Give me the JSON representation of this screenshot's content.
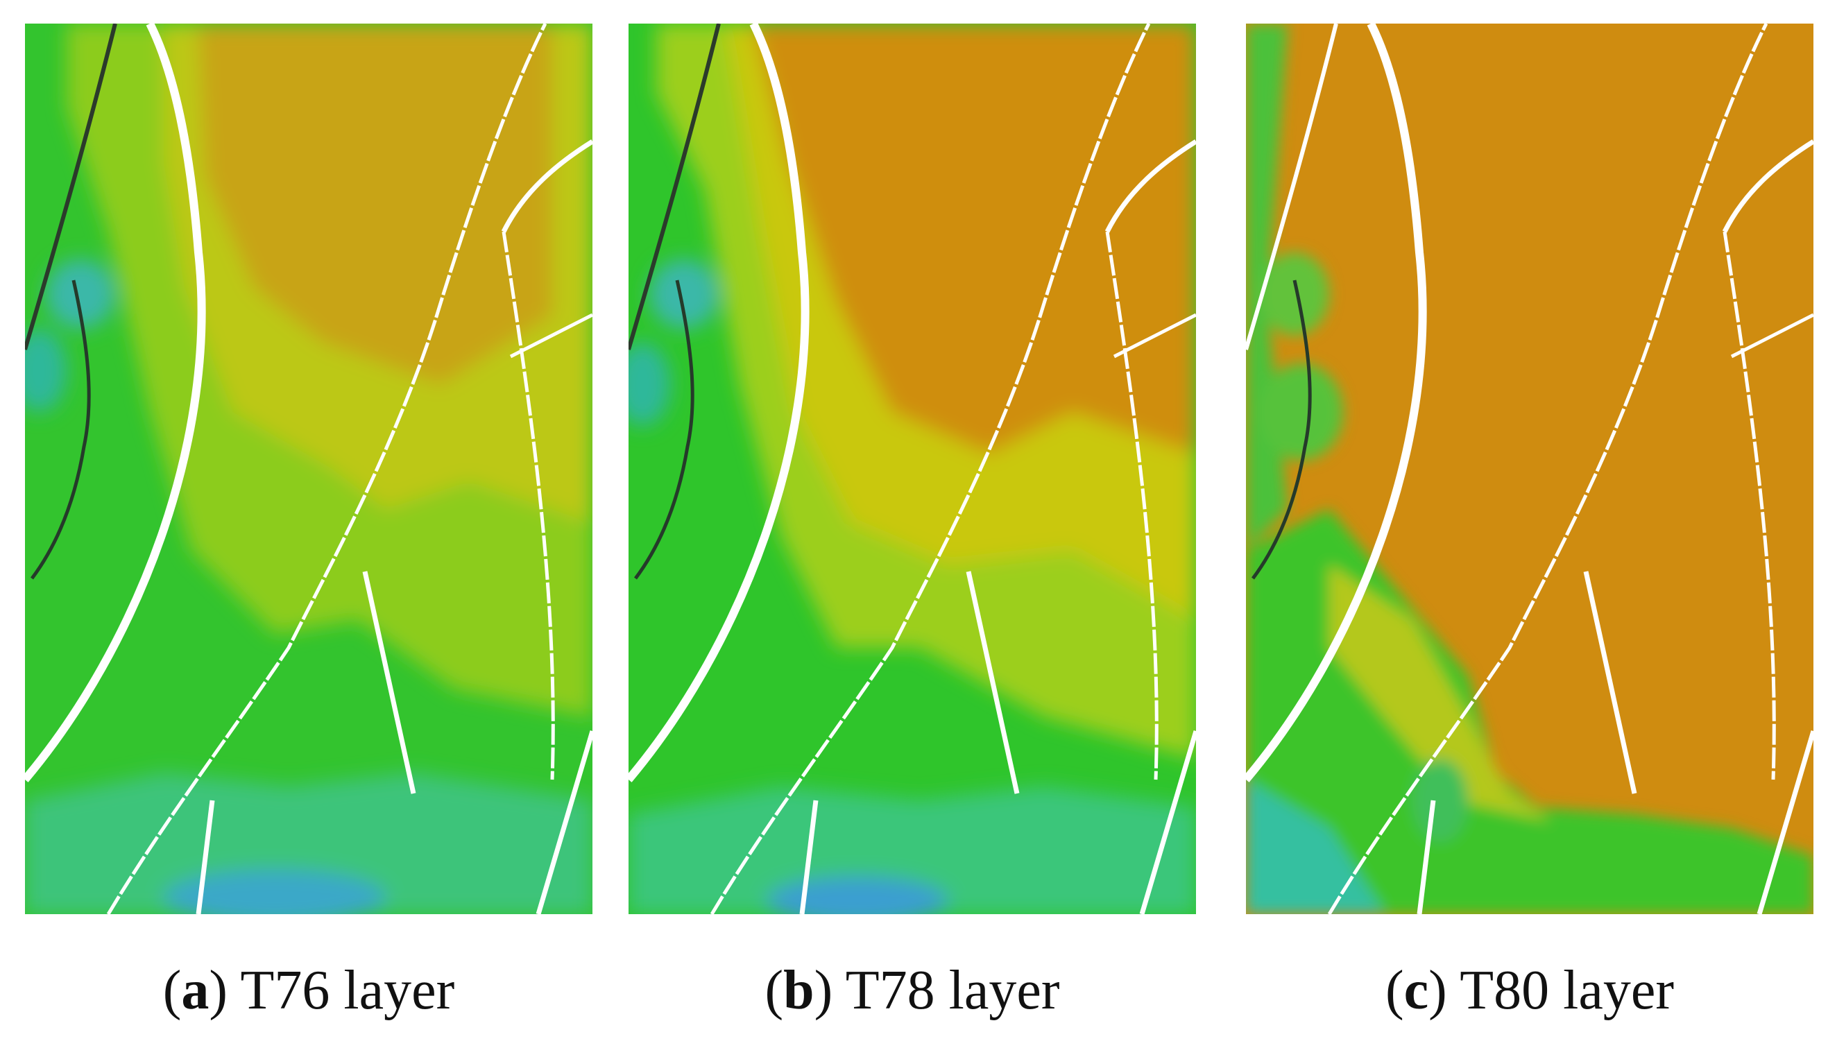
{
  "panels": [
    {
      "letter": "a",
      "caption_rest": ") T76 layer",
      "palette": "light"
    },
    {
      "letter": "b",
      "caption_rest": ") T78 layer",
      "palette": "mid"
    },
    {
      "letter": "c",
      "caption_rest": ") T80 layer",
      "palette": "deep"
    }
  ],
  "colors": {
    "green": "#2dc22c",
    "yellow_green": "#9ccf1a",
    "yellow": "#c9c80e",
    "orange_tan": "#c99a16",
    "orange": "#cf8e10",
    "cyan": "#35c7a2",
    "blue_point": "#4060d0",
    "fault": "#ffffff"
  }
}
